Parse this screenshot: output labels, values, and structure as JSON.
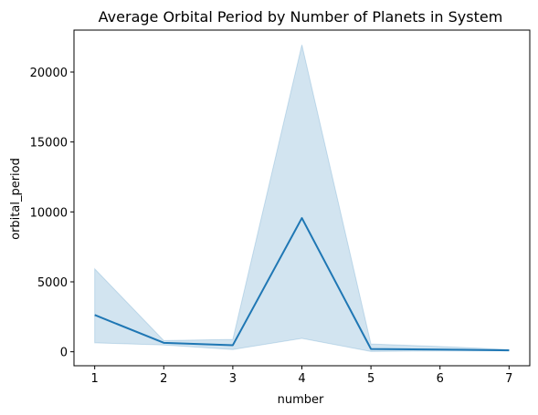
{
  "chart_data": {
    "type": "line",
    "title": "Average Orbital Period by Number of Planets in System",
    "xlabel": "number",
    "ylabel": "orbital_period",
    "x": [
      1,
      2,
      3,
      4,
      5,
      6,
      7
    ],
    "series": [
      {
        "values": [
          2630,
          640,
          470,
          9560,
          200,
          160,
          100
        ],
        "ci_lower": [
          640,
          480,
          160,
          960,
          20,
          60,
          70
        ],
        "ci_upper": [
          5930,
          800,
          880,
          21950,
          560,
          380,
          160
        ],
        "color": "#1f77b4"
      }
    ],
    "xlim": [
      0.7,
      7.3
    ],
    "ylim": [
      -1000,
      23000
    ],
    "xticks": [
      1,
      2,
      3,
      4,
      5,
      6,
      7
    ],
    "yticks": [
      0,
      5000,
      10000,
      15000,
      20000
    ],
    "grid": false
  }
}
